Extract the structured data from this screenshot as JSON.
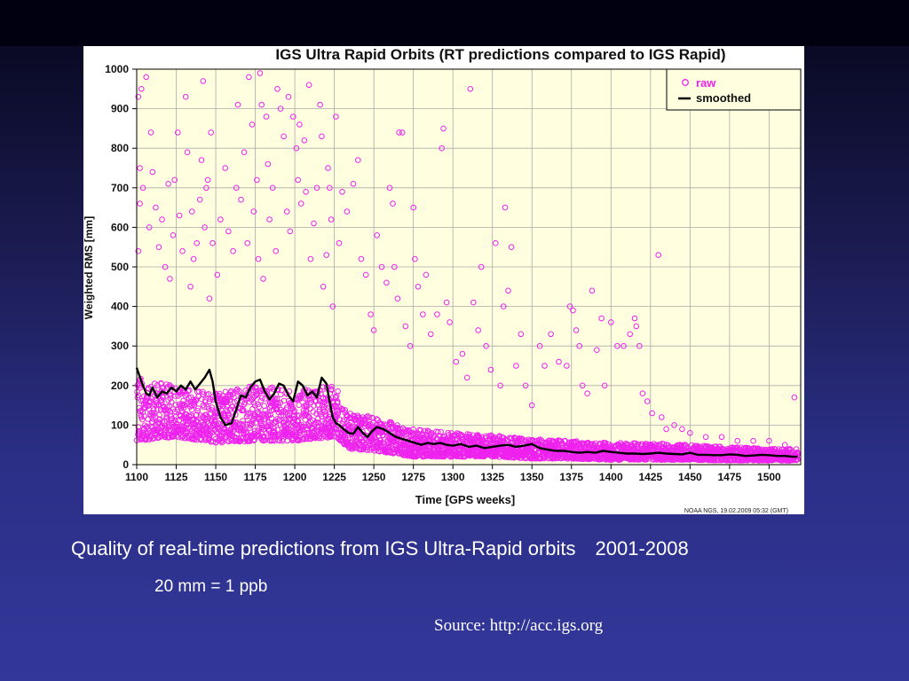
{
  "slide": {
    "caption_main": "Quality of real-time predictions from IGS Ultra-Rapid orbits",
    "caption_years": "2001-2008",
    "subcaption": "20 mm = 1 ppb",
    "source": "Source: http://acc.igs.org"
  },
  "chart_data": {
    "type": "scatter",
    "title": "IGS Ultra Rapid Orbits (RT predictions compared to IGS Rapid)",
    "xlabel": "Time [GPS weeks]",
    "ylabel": "Weighted RMS [mm]",
    "xlim": [
      1100,
      1520
    ],
    "ylim": [
      0,
      1000
    ],
    "x_ticks": [
      1100,
      1125,
      1150,
      1175,
      1200,
      1225,
      1250,
      1275,
      1300,
      1325,
      1350,
      1375,
      1400,
      1425,
      1450,
      1475,
      1500
    ],
    "y_ticks": [
      0,
      100,
      200,
      300,
      400,
      500,
      600,
      700,
      800,
      900,
      1000
    ],
    "grid": true,
    "legend_position": "top-right",
    "credit": "NOAA NGS, 19.02.2009 05:32 (GMT)",
    "series": [
      {
        "name": "raw",
        "marker": "circle",
        "color": "#ee22ee",
        "band": {
          "x": [
            1100,
            1125,
            1150,
            1175,
            1200,
            1225,
            1235,
            1250,
            1275,
            1300,
            1325,
            1350,
            1375,
            1400,
            1425,
            1450,
            1475,
            1500,
            1518
          ],
          "low": [
            60,
            70,
            55,
            60,
            60,
            70,
            40,
            35,
            20,
            20,
            20,
            15,
            15,
            12,
            12,
            12,
            10,
            10,
            10
          ],
          "high": [
            220,
            200,
            180,
            200,
            190,
            200,
            130,
            120,
            90,
            80,
            75,
            65,
            60,
            55,
            55,
            50,
            45,
            40,
            40
          ]
        },
        "outliers": [
          [
            1101,
            930
          ],
          [
            1101,
            540
          ],
          [
            1102,
            750
          ],
          [
            1102,
            660
          ],
          [
            1103,
            950
          ],
          [
            1104,
            700
          ],
          [
            1106,
            980
          ],
          [
            1108,
            600
          ],
          [
            1109,
            840
          ],
          [
            1110,
            740
          ],
          [
            1112,
            650
          ],
          [
            1114,
            550
          ],
          [
            1116,
            620
          ],
          [
            1118,
            500
          ],
          [
            1120,
            710
          ],
          [
            1121,
            470
          ],
          [
            1123,
            580
          ],
          [
            1124,
            720
          ],
          [
            1126,
            840
          ],
          [
            1127,
            630
          ],
          [
            1129,
            540
          ],
          [
            1131,
            930
          ],
          [
            1132,
            790
          ],
          [
            1134,
            450
          ],
          [
            1135,
            640
          ],
          [
            1136,
            520
          ],
          [
            1138,
            560
          ],
          [
            1140,
            670
          ],
          [
            1141,
            770
          ],
          [
            1142,
            970
          ],
          [
            1143,
            600
          ],
          [
            1144,
            700
          ],
          [
            1145,
            720
          ],
          [
            1146,
            420
          ],
          [
            1147,
            840
          ],
          [
            1148,
            560
          ],
          [
            1151,
            480
          ],
          [
            1153,
            620
          ],
          [
            1156,
            750
          ],
          [
            1158,
            590
          ],
          [
            1161,
            540
          ],
          [
            1163,
            700
          ],
          [
            1164,
            910
          ],
          [
            1166,
            670
          ],
          [
            1168,
            790
          ],
          [
            1170,
            560
          ],
          [
            1171,
            980
          ],
          [
            1173,
            860
          ],
          [
            1174,
            640
          ],
          [
            1176,
            720
          ],
          [
            1177,
            520
          ],
          [
            1178,
            990
          ],
          [
            1179,
            910
          ],
          [
            1180,
            470
          ],
          [
            1182,
            880
          ],
          [
            1183,
            760
          ],
          [
            1184,
            620
          ],
          [
            1186,
            700
          ],
          [
            1188,
            540
          ],
          [
            1189,
            950
          ],
          [
            1191,
            900
          ],
          [
            1193,
            830
          ],
          [
            1195,
            640
          ],
          [
            1196,
            930
          ],
          [
            1197,
            590
          ],
          [
            1199,
            880
          ],
          [
            1201,
            800
          ],
          [
            1202,
            720
          ],
          [
            1203,
            860
          ],
          [
            1204,
            660
          ],
          [
            1206,
            820
          ],
          [
            1207,
            690
          ],
          [
            1209,
            960
          ],
          [
            1210,
            520
          ],
          [
            1212,
            610
          ],
          [
            1214,
            700
          ],
          [
            1216,
            910
          ],
          [
            1217,
            830
          ],
          [
            1218,
            450
          ],
          [
            1220,
            530
          ],
          [
            1221,
            750
          ],
          [
            1222,
            700
          ],
          [
            1223,
            620
          ],
          [
            1224,
            400
          ],
          [
            1226,
            880
          ],
          [
            1228,
            560
          ],
          [
            1230,
            690
          ],
          [
            1233,
            640
          ],
          [
            1237,
            710
          ],
          [
            1240,
            770
          ],
          [
            1242,
            520
          ],
          [
            1245,
            480
          ],
          [
            1248,
            380
          ],
          [
            1250,
            340
          ],
          [
            1252,
            580
          ],
          [
            1255,
            500
          ],
          [
            1258,
            460
          ],
          [
            1260,
            700
          ],
          [
            1262,
            660
          ],
          [
            1263,
            500
          ],
          [
            1265,
            420
          ],
          [
            1266,
            840
          ],
          [
            1268,
            840
          ],
          [
            1270,
            350
          ],
          [
            1273,
            300
          ],
          [
            1275,
            650
          ],
          [
            1276,
            520
          ],
          [
            1278,
            450
          ],
          [
            1281,
            380
          ],
          [
            1283,
            480
          ],
          [
            1286,
            330
          ],
          [
            1290,
            380
          ],
          [
            1293,
            800
          ],
          [
            1294,
            850
          ],
          [
            1296,
            410
          ],
          [
            1298,
            360
          ],
          [
            1302,
            260
          ],
          [
            1306,
            280
          ],
          [
            1309,
            220
          ],
          [
            1311,
            950
          ],
          [
            1313,
            410
          ],
          [
            1316,
            340
          ],
          [
            1318,
            500
          ],
          [
            1321,
            300
          ],
          [
            1324,
            240
          ],
          [
            1327,
            560
          ],
          [
            1330,
            200
          ],
          [
            1332,
            400
          ],
          [
            1333,
            650
          ],
          [
            1335,
            440
          ],
          [
            1337,
            550
          ],
          [
            1340,
            250
          ],
          [
            1343,
            330
          ],
          [
            1346,
            200
          ],
          [
            1350,
            150
          ],
          [
            1355,
            300
          ],
          [
            1358,
            250
          ],
          [
            1362,
            330
          ],
          [
            1367,
            260
          ],
          [
            1372,
            250
          ],
          [
            1374,
            400
          ],
          [
            1376,
            390
          ],
          [
            1378,
            340
          ],
          [
            1380,
            300
          ],
          [
            1382,
            200
          ],
          [
            1385,
            180
          ],
          [
            1388,
            440
          ],
          [
            1391,
            290
          ],
          [
            1394,
            370
          ],
          [
            1396,
            200
          ],
          [
            1400,
            360
          ],
          [
            1404,
            300
          ],
          [
            1408,
            300
          ],
          [
            1412,
            330
          ],
          [
            1415,
            370
          ],
          [
            1416,
            350
          ],
          [
            1418,
            300
          ],
          [
            1420,
            180
          ],
          [
            1423,
            160
          ],
          [
            1426,
            130
          ],
          [
            1430,
            530
          ],
          [
            1432,
            120
          ],
          [
            1435,
            90
          ],
          [
            1440,
            100
          ],
          [
            1445,
            90
          ],
          [
            1450,
            80
          ],
          [
            1460,
            70
          ],
          [
            1470,
            70
          ],
          [
            1480,
            60
          ],
          [
            1490,
            60
          ],
          [
            1500,
            60
          ],
          [
            1510,
            50
          ],
          [
            1516,
            170
          ]
        ]
      },
      {
        "name": "smoothed",
        "color": "#000000",
        "x": [
          1100,
          1103,
          1106,
          1108,
          1110,
          1113,
          1116,
          1119,
          1122,
          1125,
          1128,
          1131,
          1134,
          1137,
          1140,
          1143,
          1146,
          1148,
          1150,
          1153,
          1156,
          1160,
          1163,
          1166,
          1169,
          1172,
          1175,
          1178,
          1181,
          1184,
          1187,
          1190,
          1193,
          1196,
          1199,
          1202,
          1205,
          1208,
          1211,
          1214,
          1217,
          1220,
          1222,
          1224,
          1226,
          1228,
          1231,
          1234,
          1237,
          1240,
          1243,
          1246,
          1249,
          1252,
          1256,
          1260,
          1264,
          1268,
          1272,
          1276,
          1280,
          1284,
          1288,
          1292,
          1296,
          1300,
          1305,
          1310,
          1315,
          1320,
          1325,
          1330,
          1335,
          1340,
          1345,
          1350,
          1355,
          1360,
          1365,
          1370,
          1375,
          1380,
          1385,
          1390,
          1395,
          1400,
          1405,
          1410,
          1415,
          1420,
          1425,
          1430,
          1435,
          1440,
          1445,
          1450,
          1455,
          1460,
          1465,
          1470,
          1475,
          1480,
          1485,
          1490,
          1495,
          1500,
          1505,
          1510,
          1515,
          1518
        ],
        "y": [
          245,
          210,
          180,
          175,
          195,
          170,
          185,
          180,
          195,
          185,
          200,
          190,
          210,
          190,
          205,
          220,
          240,
          210,
          160,
          120,
          100,
          105,
          140,
          175,
          170,
          195,
          210,
          215,
          185,
          165,
          180,
          205,
          200,
          175,
          160,
          210,
          200,
          175,
          185,
          170,
          220,
          205,
          160,
          120,
          105,
          100,
          90,
          80,
          78,
          95,
          80,
          70,
          85,
          95,
          90,
          80,
          70,
          65,
          60,
          55,
          50,
          55,
          52,
          55,
          50,
          48,
          52,
          45,
          48,
          42,
          45,
          48,
          50,
          45,
          48,
          52,
          42,
          38,
          35,
          35,
          32,
          30,
          32,
          30,
          35,
          32,
          30,
          28,
          28,
          27,
          28,
          30,
          28,
          27,
          26,
          30,
          25,
          25,
          24,
          24,
          26,
          25,
          22,
          23,
          25,
          24,
          22,
          22,
          20,
          20
        ]
      }
    ]
  }
}
